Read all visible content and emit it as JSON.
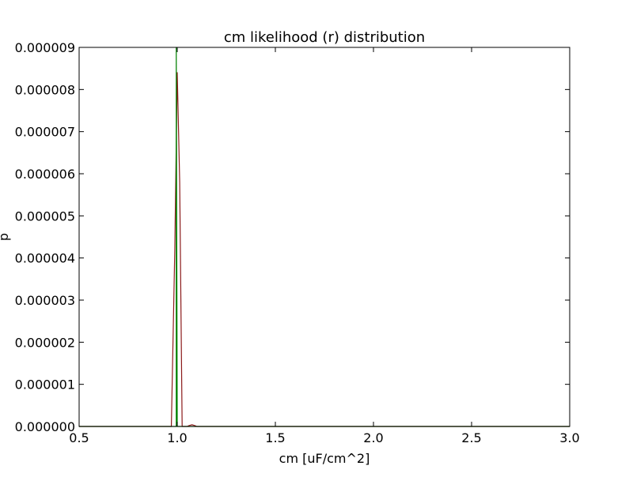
{
  "chart_data": {
    "type": "line",
    "title": "cm likelihood (r) distribution",
    "xlabel": "cm [uF/cm^2]",
    "ylabel": "p",
    "xlim": [
      0.5,
      3.0
    ],
    "ylim": [
      0,
      9e-06
    ],
    "x_ticks": [
      0.5,
      1.0,
      1.5,
      2.0,
      2.5,
      3.0
    ],
    "x_tick_labels": [
      "0.5",
      "1.0",
      "1.5",
      "2.0",
      "2.5",
      "3.0"
    ],
    "y_ticks": [
      0,
      1e-06,
      2e-06,
      3e-06,
      4e-06,
      5e-06,
      6e-06,
      7e-06,
      8e-06,
      9e-06
    ],
    "y_tick_labels": [
      "0.000000",
      "0.000001",
      "0.000002",
      "0.000003",
      "0.000004",
      "0.000005",
      "0.000006",
      "0.000007",
      "0.000008",
      "0.000009"
    ],
    "grid": false,
    "series": [
      {
        "color": "#8b1a1a",
        "x": [
          0.5,
          0.97,
          0.9875,
          1.0,
          1.0125,
          1.025,
          1.05,
          1.06,
          1.075,
          1.09,
          1.1,
          3.0
        ],
        "y": [
          0,
          0,
          4.2e-06,
          8.4e-06,
          5.8e-06,
          0,
          0,
          2e-08,
          4e-08,
          2e-08,
          0,
          0
        ]
      },
      {
        "color": "#008000",
        "x": [
          0.5,
          0.99,
          0.995,
          0.995,
          1.0,
          3.0
        ],
        "y": [
          0,
          0,
          0,
          9e-06,
          0,
          0
        ]
      }
    ]
  }
}
